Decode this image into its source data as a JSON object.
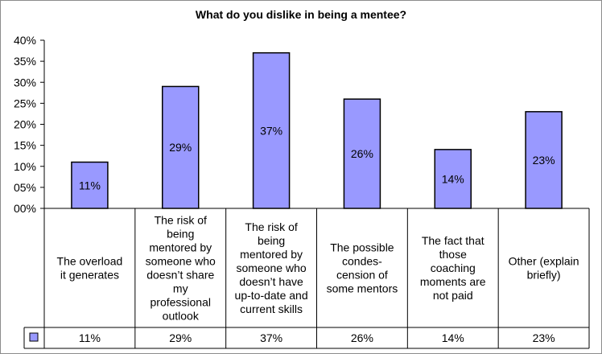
{
  "chart_data": {
    "type": "bar",
    "title": "What do you dislike in being a mentee?",
    "y_ticks": [
      "40%",
      "35%",
      "30%",
      "25%",
      "20%",
      "15%",
      "10%",
      "05%",
      "00%"
    ],
    "ylim": [
      0,
      40
    ],
    "grid": false,
    "legend": "table-left",
    "bar_color": "#9999ff",
    "bar_stroke": "#000000",
    "categories": [
      [
        "The overload",
        "it generates"
      ],
      [
        "The risk of",
        "being",
        "mentored by",
        "someone who",
        "doesn’t share",
        "my",
        "professional",
        "outlook"
      ],
      [
        "The risk of",
        "being",
        "mentored by",
        "someone who",
        "doesn’t have",
        "up-to-date and",
        "current skills"
      ],
      [
        "The possible",
        "condes-",
        "cension of",
        "some mentors"
      ],
      [
        "The fact that",
        "those",
        "coaching",
        "moments are",
        "not paid"
      ],
      [
        "Other (explain",
        "briefly)"
      ]
    ],
    "values": [
      11,
      29,
      37,
      26,
      14,
      23
    ],
    "data_labels": [
      "11%",
      "29%",
      "37%",
      "26%",
      "14%",
      "23%"
    ],
    "table_values": [
      "11%",
      "29%",
      "37%",
      "26%",
      "14%",
      "23%"
    ]
  }
}
